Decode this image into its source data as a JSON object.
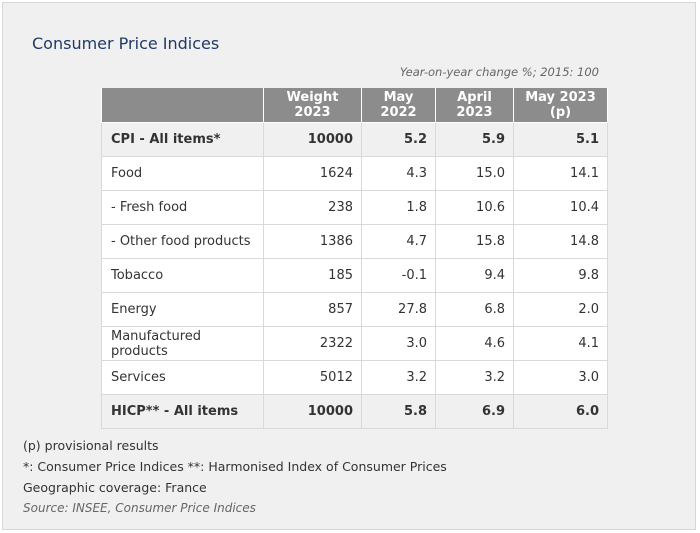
{
  "title": "Consumer Price Indices",
  "unit_note": "Year-on-year change %; 2015: 100",
  "table": {
    "headers": [
      "",
      "Weight 2023",
      "May 2022",
      "April 2023",
      "May 2023 (p)"
    ],
    "rows": [
      {
        "label": "CPI - All items*",
        "weight": "10000",
        "may2022": "5.2",
        "apr2023": "5.9",
        "may2023": "5.1",
        "bold": true
      },
      {
        "label": "Food",
        "weight": "1624",
        "may2022": "4.3",
        "apr2023": "15.0",
        "may2023": "14.1",
        "bold": false
      },
      {
        "label": "- Fresh food",
        "weight": "238",
        "may2022": "1.8",
        "apr2023": "10.6",
        "may2023": "10.4",
        "bold": false
      },
      {
        "label": "- Other food products",
        "weight": "1386",
        "may2022": "4.7",
        "apr2023": "15.8",
        "may2023": "14.8",
        "bold": false
      },
      {
        "label": "Tobacco",
        "weight": "185",
        "may2022": "-0.1",
        "apr2023": "9.4",
        "may2023": "9.8",
        "bold": false
      },
      {
        "label": "Energy",
        "weight": "857",
        "may2022": "27.8",
        "apr2023": "6.8",
        "may2023": "2.0",
        "bold": false
      },
      {
        "label": "Manufactured products",
        "weight": "2322",
        "may2022": "3.0",
        "apr2023": "4.6",
        "may2023": "4.1",
        "bold": false
      },
      {
        "label": "Services",
        "weight": "5012",
        "may2022": "3.2",
        "apr2023": "3.2",
        "may2023": "3.0",
        "bold": false
      },
      {
        "label": "HICP** - All items",
        "weight": "10000",
        "may2022": "5.8",
        "apr2023": "6.9",
        "may2023": "6.0",
        "bold": true
      }
    ]
  },
  "notes": {
    "provisional": "(p) provisional results",
    "abbreviations": "*: Consumer Price Indices **: Harmonised Index of Consumer Prices",
    "coverage": "Geographic coverage: France",
    "source": "Source: INSEE, Consumer Price Indices"
  },
  "colors": {
    "title": "#1f3a68",
    "header_bg": "#8c8c8c",
    "card_bg": "#f0f0f0"
  }
}
